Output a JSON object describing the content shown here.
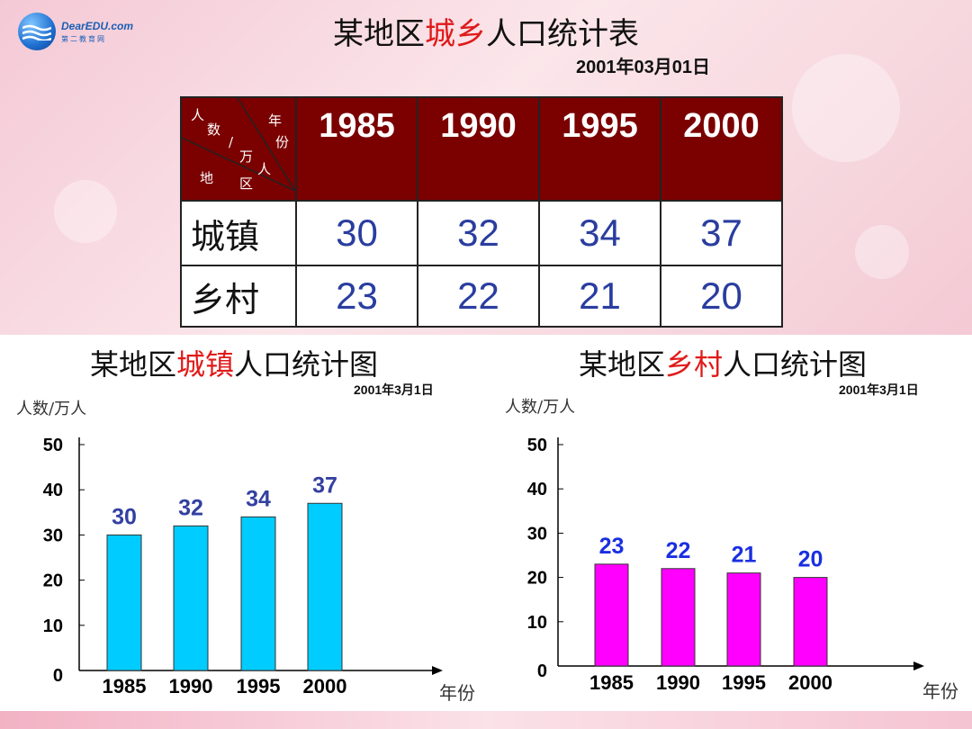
{
  "logo": {
    "brand": "DearEDU.com",
    "sub": "第二教育网"
  },
  "title": {
    "prefix": "某地区",
    "highlight": "城乡",
    "suffix": "人口统计表"
  },
  "table_date": "2001年03月01日",
  "table": {
    "corner": {
      "ren": "人",
      "shu": "数",
      "slash": "/",
      "wan": "万",
      "ren2": "人",
      "nian": "年",
      "fen": "份",
      "di": "地",
      "qu": "区"
    },
    "years": [
      "1985",
      "1990",
      "1995",
      "2000"
    ],
    "rows": [
      {
        "label": "城镇",
        "values": [
          "30",
          "32",
          "34",
          "37"
        ]
      },
      {
        "label": "乡村",
        "values": [
          "23",
          "22",
          "21",
          "20"
        ]
      }
    ]
  },
  "chart_data": [
    {
      "type": "bar",
      "title": "某地区城镇人口统计图",
      "title_parts": {
        "prefix": "某地区",
        "highlight": "城镇",
        "suffix": "人口统计图"
      },
      "date": "2001年3月1日",
      "ylabel": "人数/万人",
      "xlabel": "年份",
      "categories": [
        "1985",
        "1990",
        "1995",
        "2000"
      ],
      "values": [
        30,
        32,
        34,
        37
      ],
      "yticks": [
        0,
        10,
        20,
        30,
        40,
        50
      ],
      "ylim": [
        0,
        50
      ],
      "bar_color": "#00ccff",
      "label_color": "#3340a0"
    },
    {
      "type": "bar",
      "title": "某地区乡村人口统计图",
      "title_parts": {
        "prefix": "某地区",
        "highlight": "乡村",
        "suffix": "人口统计图"
      },
      "date": "2001年3月1日",
      "ylabel": "人数/万人",
      "xlabel": "年份",
      "categories": [
        "1985",
        "1990",
        "1995",
        "2000"
      ],
      "values": [
        23,
        22,
        21,
        20
      ],
      "yticks": [
        0,
        10,
        20,
        30,
        40,
        50
      ],
      "ylim": [
        0,
        50
      ],
      "bar_color": "#ff00ff",
      "label_color": "#1a2fe0"
    }
  ],
  "colors": {
    "header_bg": "#7b0000",
    "highlight": "#e01a1a",
    "cell_text": "#2a3d9f"
  }
}
